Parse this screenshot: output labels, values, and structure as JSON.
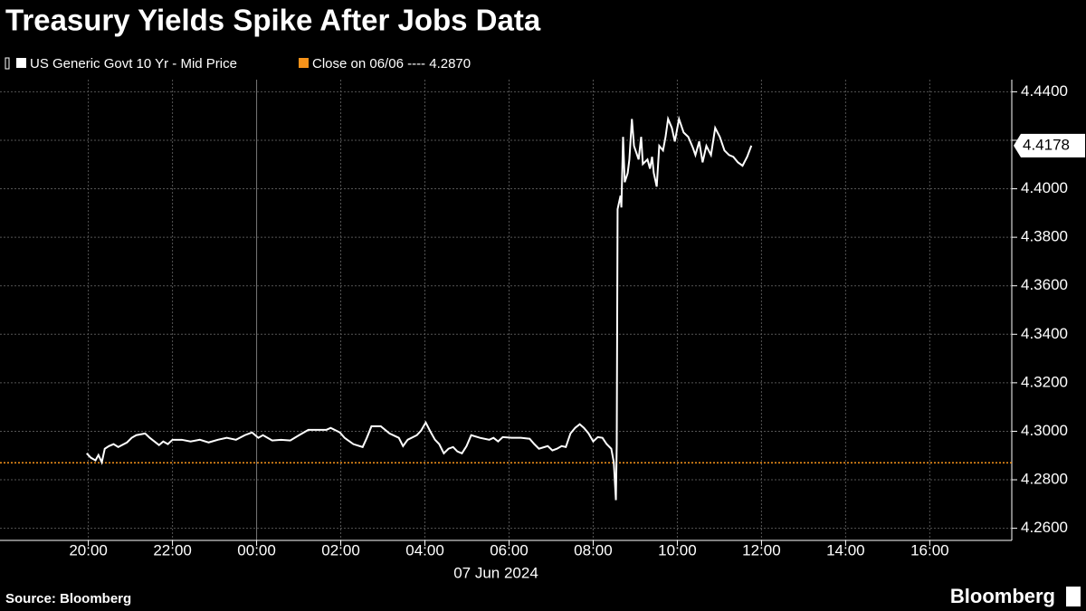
{
  "chart_data": {
    "type": "line",
    "title": "Treasury Yields Spike After Jobs Data",
    "x_date_label": "07 Jun 2024",
    "source": "Source: Bloomberg",
    "brand": "Bloomberg",
    "xlim": [
      -6.1,
      17.95
    ],
    "xticks": [
      {
        "value": -4,
        "label": "20:00"
      },
      {
        "value": -2,
        "label": "22:00"
      },
      {
        "value": 0,
        "label": "00:00"
      },
      {
        "value": 2,
        "label": "02:00"
      },
      {
        "value": 4,
        "label": "04:00"
      },
      {
        "value": 6,
        "label": "06:00"
      },
      {
        "value": 8,
        "label": "08:00"
      },
      {
        "value": 10,
        "label": "10:00"
      },
      {
        "value": 12,
        "label": "12:00"
      },
      {
        "value": 14,
        "label": "14:00"
      },
      {
        "value": 16,
        "label": "16:00"
      }
    ],
    "ylim": [
      4.255,
      4.445
    ],
    "yticks": [
      {
        "value": 4.26,
        "label": "4.2600"
      },
      {
        "value": 4.28,
        "label": "4.2800"
      },
      {
        "value": 4.3,
        "label": "4.3000"
      },
      {
        "value": 4.32,
        "label": "4.3200"
      },
      {
        "value": 4.34,
        "label": "4.3400"
      },
      {
        "value": 4.36,
        "label": "4.3600"
      },
      {
        "value": 4.38,
        "label": "4.3800"
      },
      {
        "value": 4.4,
        "label": "4.4000"
      },
      {
        "value": 4.42,
        "label": "4.4200"
      },
      {
        "value": 4.44,
        "label": "4.4400"
      }
    ],
    "grid": true,
    "last_value": 4.4178,
    "reference": {
      "name": "Close on 06/06 ---- 4.2870",
      "color": "#f7931a",
      "value": 4.287
    },
    "series": [
      {
        "name": "US Generic Govt 10 Yr - Mid Price",
        "color": "#ffffff",
        "x": [
          -4.04,
          -3.94,
          -3.83,
          -3.76,
          -3.68,
          -3.61,
          -3.51,
          -3.4,
          -3.29,
          -3.08,
          -2.97,
          -2.86,
          -2.65,
          -2.54,
          -2.43,
          -2.32,
          -2.22,
          -2.11,
          -2.0,
          -1.78,
          -1.57,
          -1.35,
          -1.14,
          -0.92,
          -0.71,
          -0.49,
          -0.28,
          -0.11,
          0.04,
          0.15,
          0.37,
          0.58,
          0.8,
          1.01,
          1.23,
          1.66,
          1.76,
          1.98,
          2.09,
          2.3,
          2.52,
          2.62,
          2.73,
          2.95,
          3.16,
          3.38,
          3.48,
          3.59,
          3.81,
          3.91,
          4.02,
          4.13,
          4.24,
          4.34,
          4.45,
          4.56,
          4.67,
          4.77,
          4.88,
          4.99,
          5.1,
          5.31,
          5.53,
          5.63,
          5.74,
          5.85,
          6.06,
          6.28,
          6.49,
          6.6,
          6.71,
          6.92,
          7.03,
          7.14,
          7.25,
          7.35,
          7.46,
          7.57,
          7.68,
          7.78,
          7.89,
          8.0,
          8.11,
          8.22,
          8.32,
          8.43,
          8.49,
          8.54,
          8.56,
          8.58,
          8.65,
          8.67,
          8.71,
          8.75,
          8.82,
          8.86,
          8.92,
          8.97,
          9.08,
          9.14,
          9.18,
          9.29,
          9.35,
          9.4,
          9.44,
          9.51,
          9.57,
          9.66,
          9.72,
          9.78,
          9.87,
          9.94,
          10.04,
          10.15,
          10.26,
          10.37,
          10.43,
          10.52,
          10.6,
          10.69,
          10.8,
          10.9,
          11.01,
          11.12,
          11.23,
          11.33,
          11.44,
          11.55,
          11.66,
          11.76
        ],
        "values": [
          4.2909,
          4.2891,
          4.288,
          4.2902,
          4.2872,
          4.2928,
          4.2939,
          4.2947,
          4.2935,
          4.2954,
          4.2973,
          4.2984,
          4.2991,
          4.2973,
          4.2958,
          4.2943,
          4.2958,
          4.2947,
          4.2965,
          4.2965,
          4.2958,
          4.2965,
          4.2954,
          4.2965,
          4.2973,
          4.2965,
          4.2984,
          4.2995,
          4.2973,
          4.2984,
          4.2962,
          4.2965,
          4.2962,
          4.2984,
          4.3006,
          4.3006,
          4.3014,
          4.2995,
          4.2973,
          4.2947,
          4.2935,
          4.2973,
          4.3021,
          4.3021,
          4.2991,
          4.2973,
          4.2939,
          4.2965,
          4.2984,
          4.3003,
          4.3036,
          4.2999,
          4.2965,
          4.2947,
          4.2909,
          4.2928,
          4.2935,
          4.2917,
          4.2909,
          4.2939,
          4.2984,
          4.2973,
          4.2965,
          4.2973,
          4.2958,
          4.2976,
          4.2973,
          4.2973,
          4.2969,
          4.2947,
          4.2928,
          4.2939,
          4.2921,
          4.2928,
          4.2939,
          4.2935,
          4.2991,
          4.3014,
          4.3029,
          4.3014,
          4.2991,
          4.2958,
          4.2976,
          4.2973,
          4.2947,
          4.2928,
          4.2872,
          4.2716,
          4.2947,
          4.3916,
          4.3972,
          4.3923,
          4.4214,
          4.4027,
          4.4065,
          4.4121,
          4.4288,
          4.4177,
          4.4121,
          4.4214,
          4.4102,
          4.4121,
          4.4083,
          4.4132,
          4.4065,
          4.4009,
          4.4177,
          4.4158,
          4.4214,
          4.4288,
          4.4251,
          4.4195,
          4.4288,
          4.4232,
          4.4214,
          4.4169,
          4.4139,
          4.4195,
          4.4109,
          4.4177,
          4.4139,
          4.4251,
          4.4214,
          4.4158,
          4.4139,
          4.4132,
          4.4109,
          4.4095,
          4.4132,
          4.4178
        ]
      }
    ]
  }
}
